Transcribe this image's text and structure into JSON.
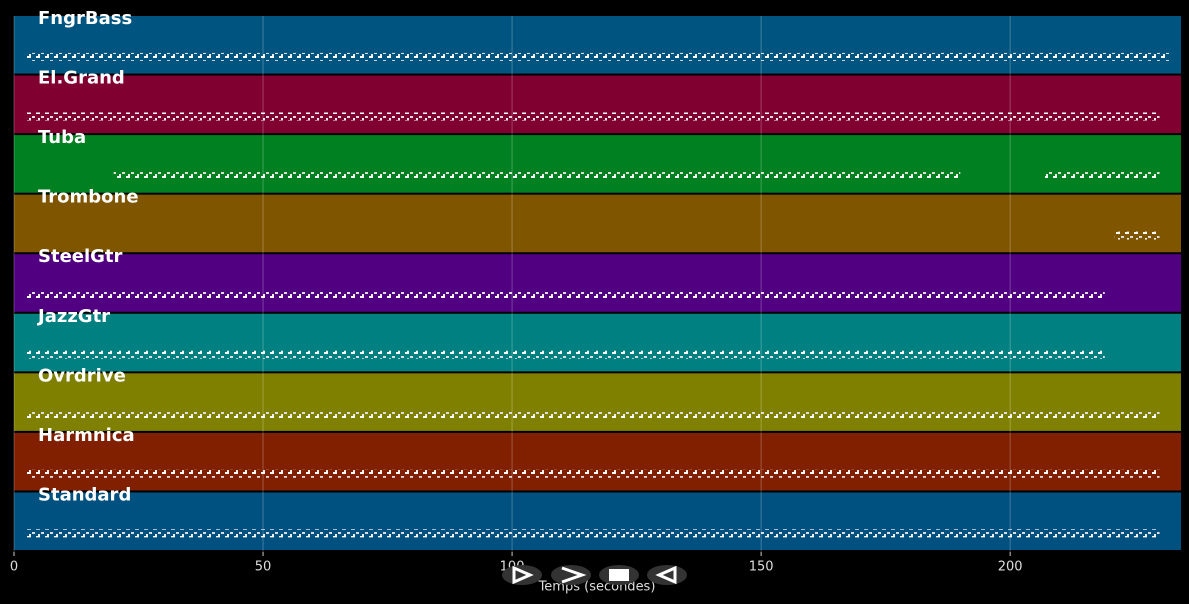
{
  "chart_data": {
    "type": "pianoroll",
    "x_label": "Temps (secondes)",
    "xlim": [
      0,
      234.3
    ],
    "xticks": [
      0,
      50,
      100,
      150,
      200
    ],
    "grid": true,
    "series": [
      {
        "name": "FngrBass",
        "color": "#005580",
        "spans": [
          [
            2.5,
            232
          ]
        ]
      },
      {
        "name": "El.Grand",
        "color": "#800030",
        "spans": [
          [
            2.5,
            230
          ]
        ]
      },
      {
        "name": "Tuba",
        "color": "#008020",
        "spans": [
          [
            20,
            190
          ],
          [
            207,
            230
          ]
        ]
      },
      {
        "name": "Trombone",
        "color": "#805500",
        "spans": [
          [
            221,
            230
          ]
        ]
      },
      {
        "name": "SteelGtr",
        "color": "#500080",
        "spans": [
          [
            2.5,
            219
          ]
        ]
      },
      {
        "name": "JazzGtr",
        "color": "#008080",
        "spans": [
          [
            2.5,
            219
          ]
        ]
      },
      {
        "name": "Ovrdrive",
        "color": "#808000",
        "spans": [
          [
            2.5,
            230
          ]
        ]
      },
      {
        "name": "Harmnica",
        "color": "#802000",
        "spans": [
          [
            2.5,
            230
          ]
        ]
      },
      {
        "name": "Standard",
        "color": "#005080",
        "spans": [
          [
            2.5,
            230
          ]
        ]
      }
    ]
  }
}
